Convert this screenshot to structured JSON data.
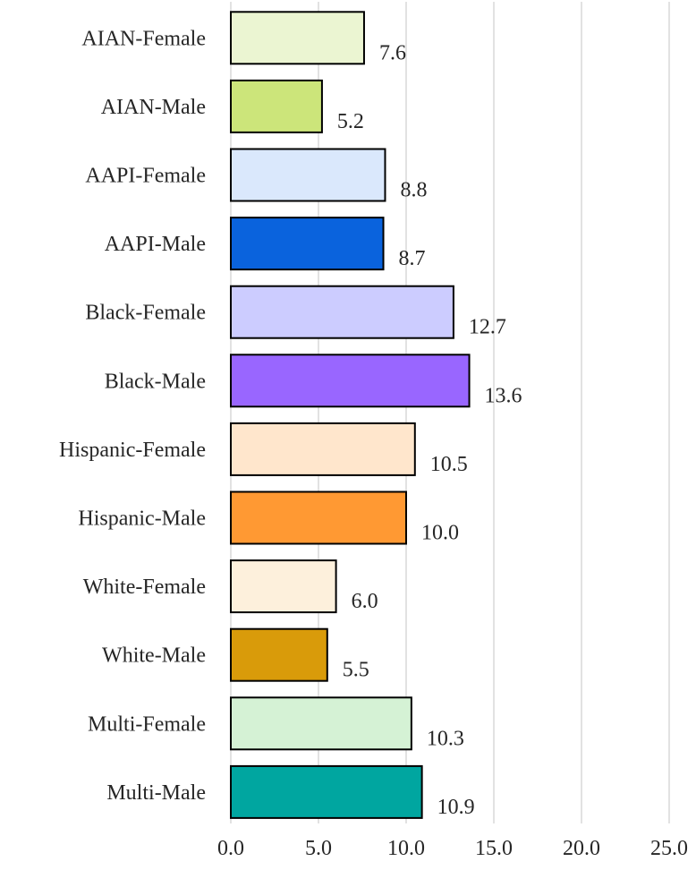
{
  "chart_data": {
    "type": "bar",
    "orientation": "horizontal",
    "title": "",
    "xlabel": "",
    "ylabel": "",
    "xlim": [
      0,
      25
    ],
    "x_ticks": [
      "0.0",
      "5.0",
      "10.0",
      "15.0",
      "20.0",
      "25.0"
    ],
    "x_tick_values": [
      0,
      5,
      10,
      15,
      20,
      25
    ],
    "grid": true,
    "legend": "none",
    "categories": [
      "AIAN-Female",
      "AIAN-Male",
      "AAPI-Female",
      "AAPI-Male",
      "Black-Female",
      "Black-Male",
      "Hispanic-Female",
      "Hispanic-Male",
      "White-Female",
      "White-Male",
      "Multi-Female",
      "Multi-Male"
    ],
    "values": [
      7.6,
      5.2,
      8.8,
      8.7,
      12.7,
      13.6,
      10.5,
      10.0,
      6.0,
      5.5,
      10.3,
      10.9
    ],
    "value_labels": [
      "7.6",
      "5.2",
      "8.8",
      "8.7",
      "12.7",
      "13.6",
      "10.5",
      "10.0",
      "6.0",
      "5.5",
      "10.3",
      "10.9"
    ],
    "colors": [
      "#EBF5D2",
      "#CCE57A",
      "#DAE8FC",
      "#0A63DD",
      "#CCCCFF",
      "#9966FF",
      "#FFE6CC",
      "#FF9933",
      "#FDF0DC",
      "#D99B0A",
      "#D5F2D5",
      "#00A6A0"
    ]
  }
}
